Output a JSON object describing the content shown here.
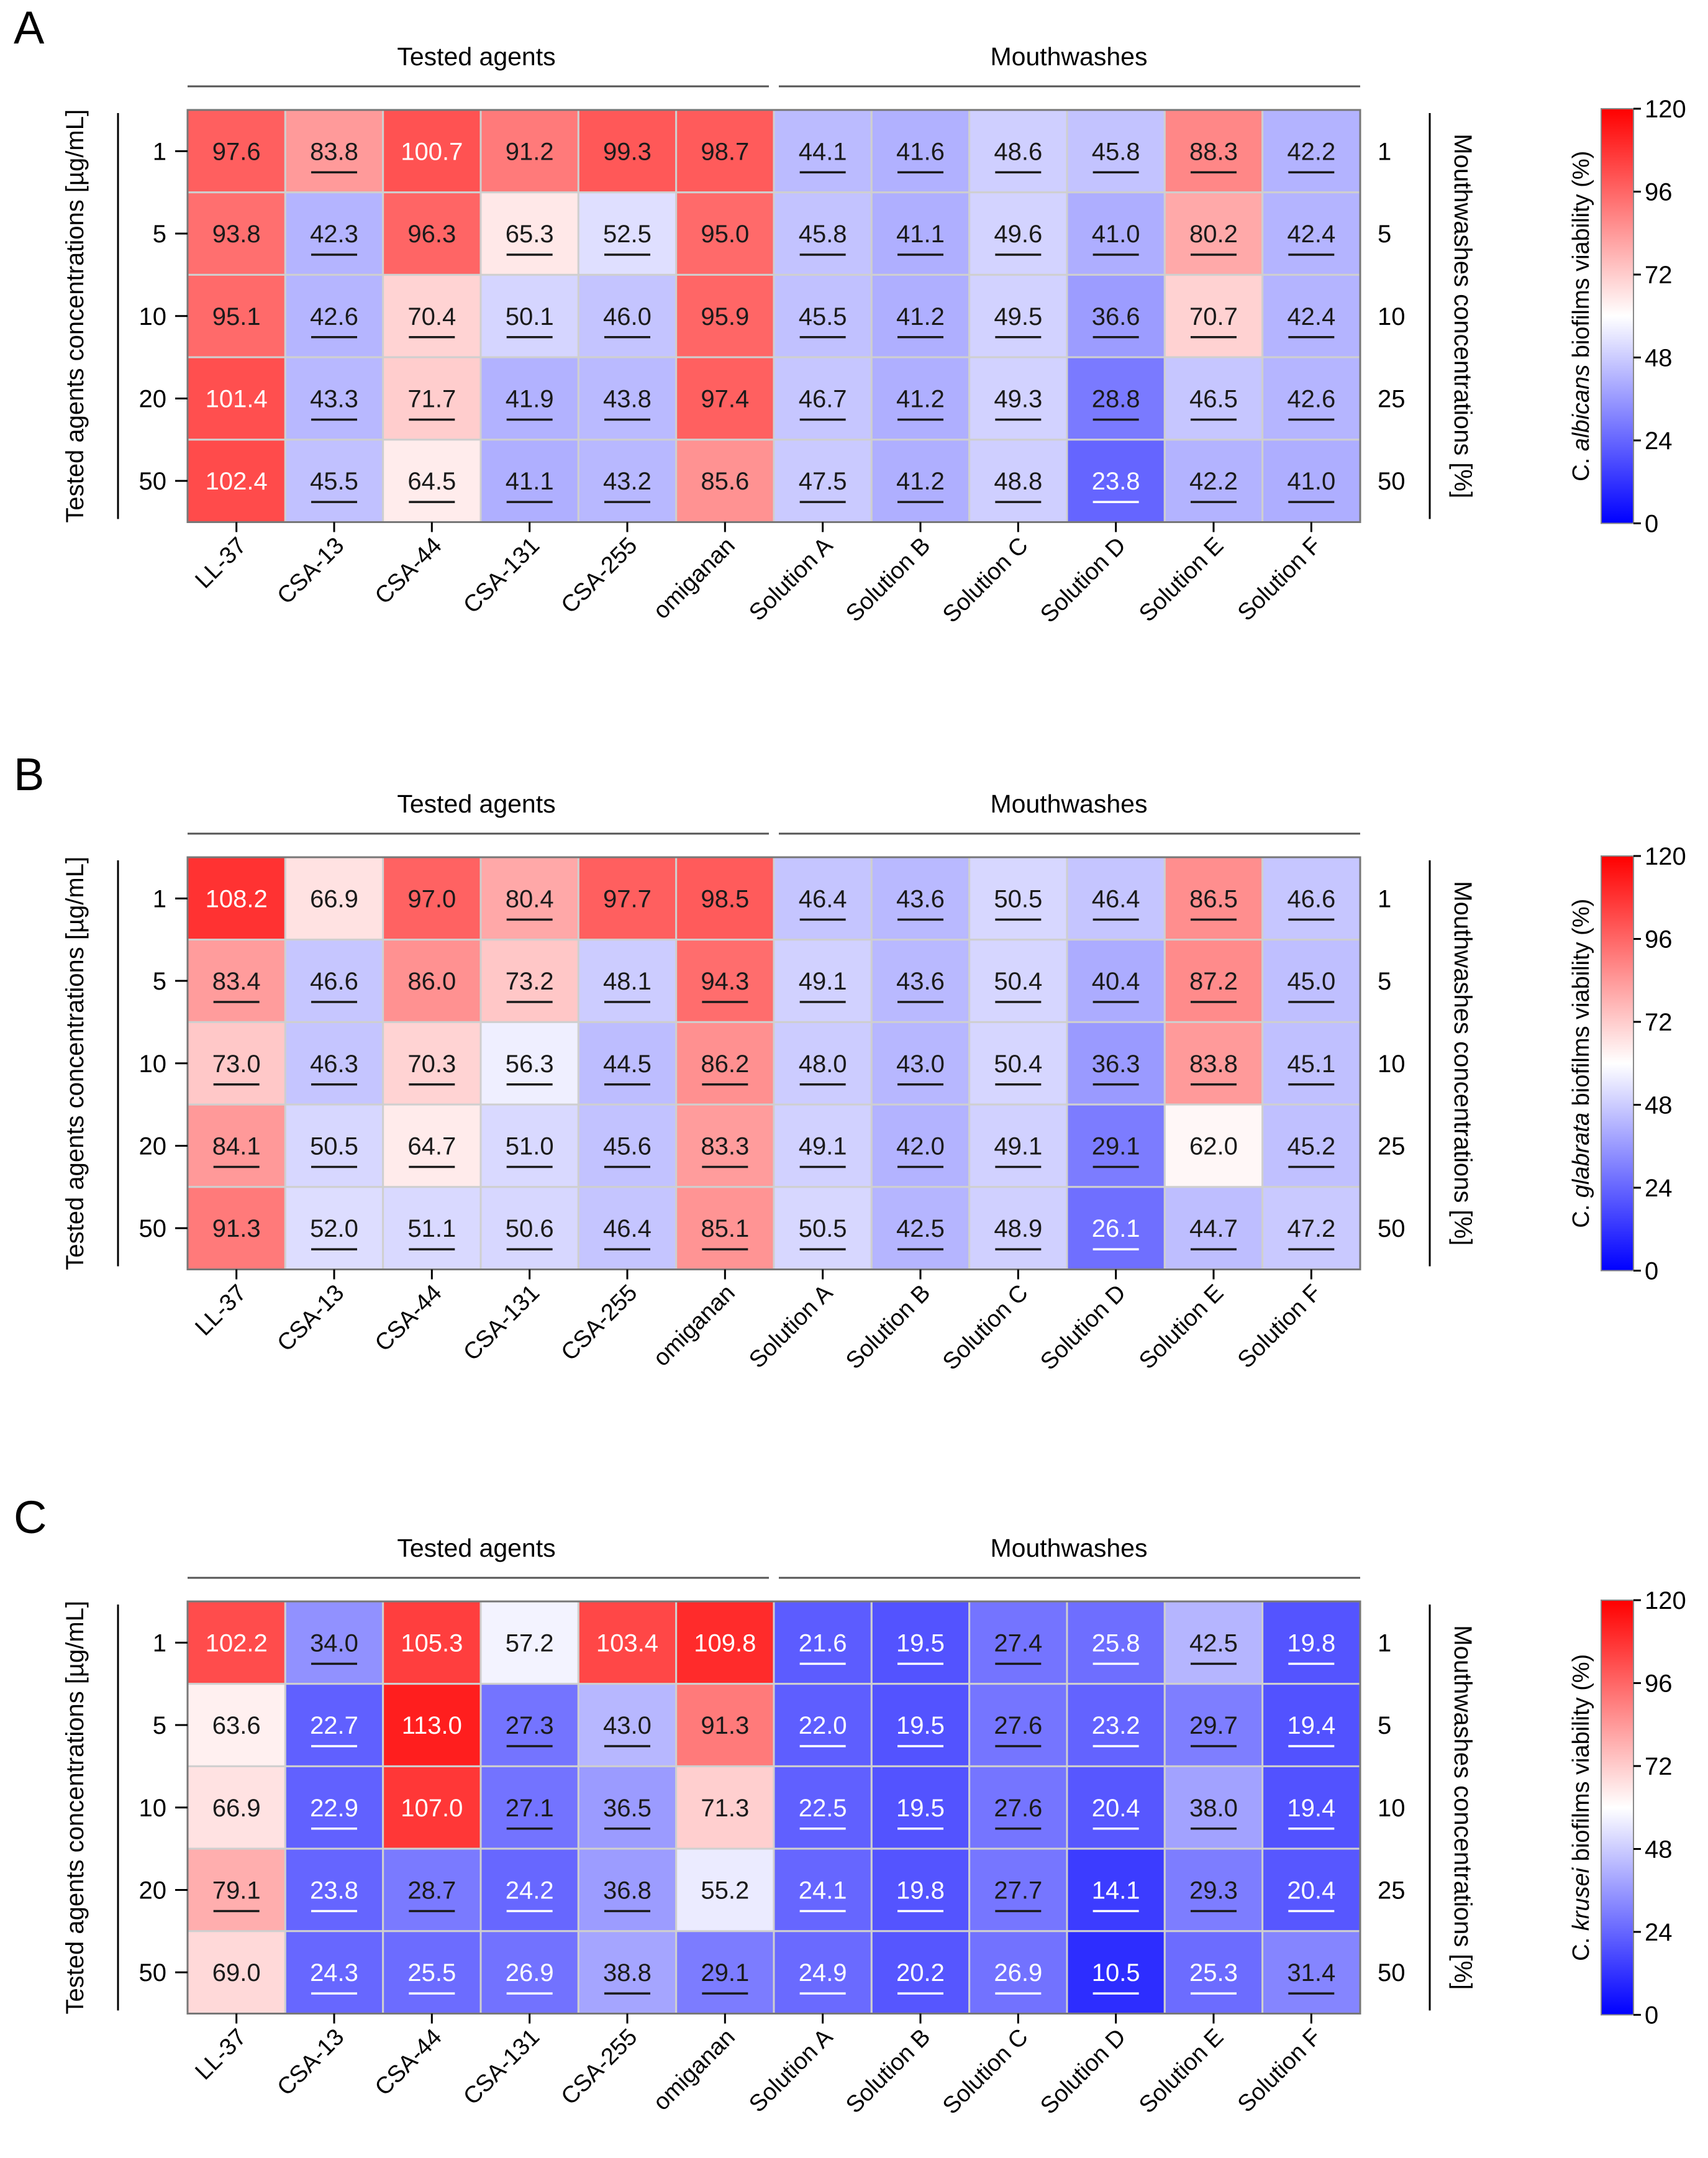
{
  "figure": {
    "group_labels": [
      "Tested agents",
      "Mouthwashes"
    ],
    "left_axis_label": "Tested agents concentrations [µg/mL]",
    "right_axis_label": "Mouthwashes concentrations [%]"
  },
  "chart_data": [
    {
      "type": "heatmap",
      "panel_label": "A",
      "categories": [
        "LL-37",
        "CSA-13",
        "CSA-44",
        "CSA-131",
        "CSA-255",
        "omiganan",
        "Solution A",
        "Solution B",
        "Solution C",
        "Solution D",
        "Solution E",
        "Solution F"
      ],
      "left_row_labels": [
        "1",
        "5",
        "10",
        "20",
        "50"
      ],
      "right_row_labels": [
        "1",
        "5",
        "10",
        "25",
        "50"
      ],
      "values": [
        [
          97.6,
          83.8,
          100.7,
          91.2,
          99.3,
          98.7,
          44.1,
          41.6,
          48.6,
          45.8,
          88.3,
          42.2
        ],
        [
          93.8,
          42.3,
          96.3,
          65.3,
          52.5,
          95.0,
          45.8,
          41.1,
          49.6,
          41.0,
          80.2,
          42.4
        ],
        [
          95.1,
          42.6,
          70.4,
          50.1,
          46.0,
          95.9,
          45.5,
          41.2,
          49.5,
          36.6,
          70.7,
          42.4
        ],
        [
          101.4,
          43.3,
          71.7,
          41.9,
          43.8,
          97.4,
          46.7,
          41.2,
          49.3,
          28.8,
          46.5,
          42.6
        ],
        [
          102.4,
          45.5,
          64.5,
          41.1,
          43.2,
          85.6,
          47.5,
          41.2,
          48.8,
          23.8,
          42.2,
          41.0
        ]
      ],
      "underlined": [
        [
          false,
          true,
          false,
          false,
          false,
          false,
          true,
          true,
          true,
          true,
          true,
          true
        ],
        [
          false,
          true,
          false,
          true,
          true,
          false,
          true,
          true,
          true,
          true,
          true,
          true
        ],
        [
          false,
          true,
          true,
          true,
          true,
          false,
          true,
          true,
          true,
          true,
          true,
          true
        ],
        [
          false,
          true,
          true,
          true,
          true,
          false,
          true,
          true,
          true,
          true,
          true,
          true
        ],
        [
          false,
          true,
          true,
          true,
          true,
          false,
          true,
          true,
          true,
          true,
          true,
          true
        ]
      ],
      "colorbar": {
        "label_prefix": "C. ",
        "label_species": "albicans",
        "label_suffix": " biofilms viability (%)",
        "min": 0,
        "max": 120,
        "ticks": [
          "0",
          "24",
          "48",
          "72",
          "96",
          "120"
        ]
      }
    },
    {
      "type": "heatmap",
      "panel_label": "B",
      "categories": [
        "LL-37",
        "CSA-13",
        "CSA-44",
        "CSA-131",
        "CSA-255",
        "omiganan",
        "Solution A",
        "Solution B",
        "Solution C",
        "Solution D",
        "Solution E",
        "Solution F"
      ],
      "left_row_labels": [
        "1",
        "5",
        "10",
        "20",
        "50"
      ],
      "right_row_labels": [
        "1",
        "5",
        "10",
        "25",
        "50"
      ],
      "values": [
        [
          108.2,
          66.9,
          97.0,
          80.4,
          97.7,
          98.5,
          46.4,
          43.6,
          50.5,
          46.4,
          86.5,
          46.6
        ],
        [
          83.4,
          46.6,
          86.0,
          73.2,
          48.1,
          94.3,
          49.1,
          43.6,
          50.4,
          40.4,
          87.2,
          45.0
        ],
        [
          73.0,
          46.3,
          70.3,
          56.3,
          44.5,
          86.2,
          48.0,
          43.0,
          50.4,
          36.3,
          83.8,
          45.1
        ],
        [
          84.1,
          50.5,
          64.7,
          51.0,
          45.6,
          83.3,
          49.1,
          42.0,
          49.1,
          29.1,
          62.0,
          45.2
        ],
        [
          91.3,
          52.0,
          51.1,
          50.6,
          46.4,
          85.1,
          50.5,
          42.5,
          48.9,
          26.1,
          44.7,
          47.2
        ]
      ],
      "underlined": [
        [
          false,
          false,
          false,
          true,
          false,
          false,
          true,
          true,
          true,
          true,
          true,
          true
        ],
        [
          true,
          true,
          false,
          true,
          true,
          true,
          true,
          true,
          true,
          true,
          true,
          true
        ],
        [
          true,
          true,
          true,
          true,
          true,
          true,
          true,
          true,
          true,
          true,
          true,
          true
        ],
        [
          true,
          true,
          true,
          true,
          true,
          true,
          true,
          true,
          true,
          true,
          false,
          true
        ],
        [
          false,
          true,
          true,
          true,
          true,
          true,
          true,
          true,
          true,
          true,
          true,
          true
        ]
      ],
      "colorbar": {
        "label_prefix": "C. ",
        "label_species": "glabrata",
        "label_suffix": " biofilms viability (%)",
        "min": 0,
        "max": 120,
        "ticks": [
          "0",
          "24",
          "48",
          "72",
          "96",
          "120"
        ]
      }
    },
    {
      "type": "heatmap",
      "panel_label": "C",
      "categories": [
        "LL-37",
        "CSA-13",
        "CSA-44",
        "CSA-131",
        "CSA-255",
        "omiganan",
        "Solution A",
        "Solution B",
        "Solution C",
        "Solution D",
        "Solution E",
        "Solution F"
      ],
      "left_row_labels": [
        "1",
        "5",
        "10",
        "20",
        "50"
      ],
      "right_row_labels": [
        "1",
        "5",
        "10",
        "25",
        "50"
      ],
      "values": [
        [
          102.2,
          34.0,
          105.3,
          57.2,
          103.4,
          109.8,
          21.6,
          19.5,
          27.4,
          25.8,
          42.5,
          19.8
        ],
        [
          63.6,
          22.7,
          113.0,
          27.3,
          43.0,
          91.3,
          22.0,
          19.5,
          27.6,
          23.2,
          29.7,
          19.4
        ],
        [
          66.9,
          22.9,
          107.0,
          27.1,
          36.5,
          71.3,
          22.5,
          19.5,
          27.6,
          20.4,
          38.0,
          19.4
        ],
        [
          79.1,
          23.8,
          28.7,
          24.2,
          36.8,
          55.2,
          24.1,
          19.8,
          27.7,
          14.1,
          29.3,
          20.4
        ],
        [
          69.0,
          24.3,
          25.5,
          26.9,
          38.8,
          29.1,
          24.9,
          20.2,
          26.9,
          10.5,
          25.3,
          31.4
        ]
      ],
      "underlined": [
        [
          false,
          true,
          false,
          false,
          false,
          false,
          true,
          true,
          true,
          true,
          true,
          true
        ],
        [
          false,
          true,
          false,
          true,
          true,
          false,
          true,
          true,
          true,
          true,
          true,
          true
        ],
        [
          false,
          true,
          false,
          true,
          true,
          false,
          true,
          true,
          true,
          true,
          true,
          true
        ],
        [
          true,
          true,
          true,
          true,
          true,
          false,
          true,
          true,
          true,
          true,
          true,
          true
        ],
        [
          false,
          true,
          true,
          true,
          true,
          true,
          true,
          true,
          true,
          true,
          true,
          true
        ]
      ],
      "colorbar": {
        "label_prefix": "C. ",
        "label_species": "krusei",
        "label_suffix": " biofilms viability (%)",
        "min": 0,
        "max": 120,
        "ticks": [
          "0",
          "24",
          "48",
          "72",
          "96",
          "120"
        ]
      }
    }
  ]
}
